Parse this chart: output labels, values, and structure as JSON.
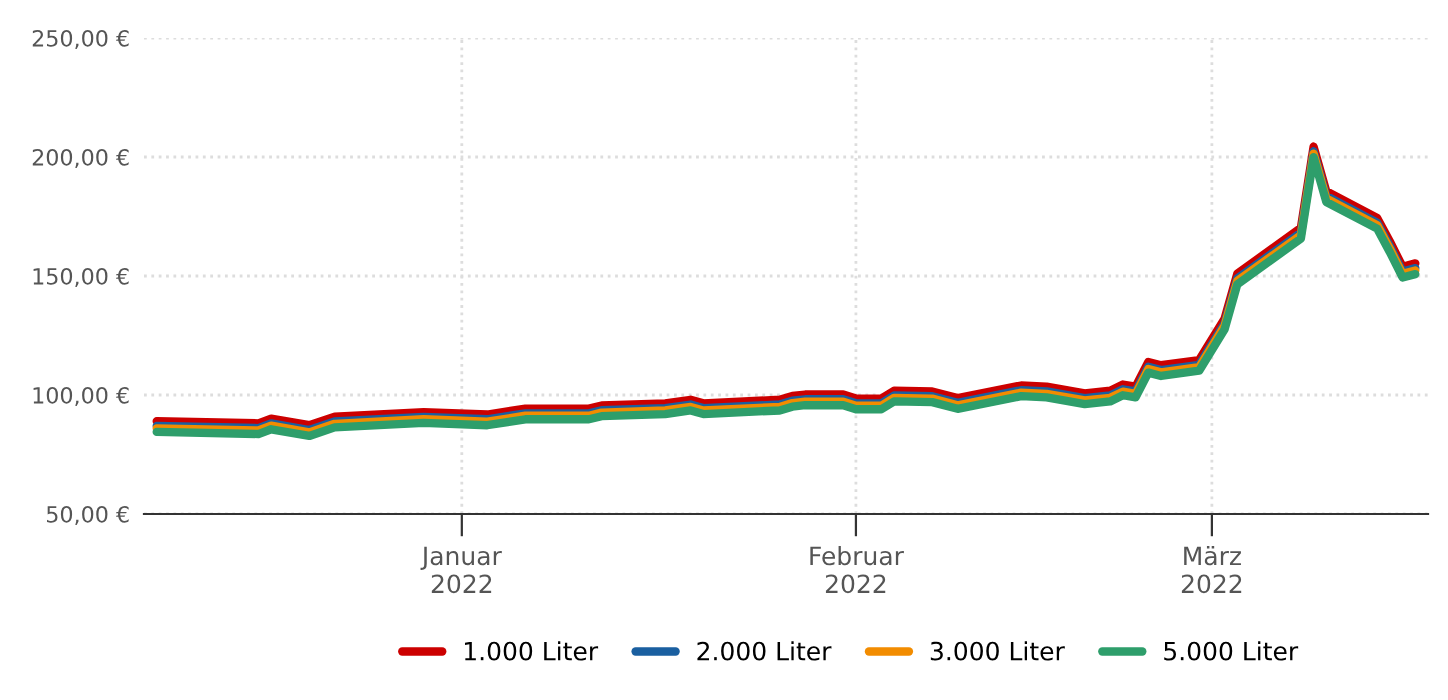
{
  "chart_data": {
    "type": "line",
    "x": [
      "2021-12-08",
      "2021-12-16",
      "2021-12-17",
      "2021-12-20",
      "2021-12-22",
      "2021-12-29",
      "2022-01-03",
      "2022-01-06",
      "2022-01-11",
      "2022-01-12",
      "2022-01-17",
      "2022-01-19",
      "2022-01-20",
      "2022-01-26",
      "2022-01-27",
      "2022-01-28",
      "2022-01-31",
      "2022-02-01",
      "2022-02-03",
      "2022-02-04",
      "2022-02-07",
      "2022-02-09",
      "2022-02-14",
      "2022-02-16",
      "2022-02-19",
      "2022-02-21",
      "2022-02-22",
      "2022-02-23",
      "2022-02-24",
      "2022-02-25",
      "2022-02-28",
      "2022-03-02",
      "2022-03-03",
      "2022-03-08",
      "2022-03-09",
      "2022-03-10",
      "2022-03-14",
      "2022-03-15",
      "2022-03-16",
      "2022-03-17"
    ],
    "series": [
      {
        "name": "1.000 Liter",
        "color": "#cc0000",
        "values": [
          89.0,
          88.1,
          90.1,
          87.3,
          90.9,
          92.8,
          91.8,
          94.3,
          94.3,
          95.6,
          96.5,
          98.0,
          96.5,
          98.0,
          99.6,
          100.2,
          100.2,
          98.5,
          98.5,
          101.8,
          101.5,
          98.7,
          104.0,
          103.5,
          100.7,
          101.8,
          104.4,
          103.5,
          113.9,
          112.5,
          114.7,
          132.1,
          151.0,
          170.2,
          204.4,
          185.6,
          174.4,
          164.5,
          153.9,
          155.3
        ]
      },
      {
        "name": "2.000 Liter",
        "color": "#1a5fa0",
        "values": [
          87.0,
          86.1,
          88.1,
          85.3,
          88.9,
          90.8,
          89.8,
          92.3,
          92.3,
          93.6,
          94.5,
          96.0,
          94.5,
          96.0,
          97.6,
          98.2,
          98.2,
          96.5,
          96.5,
          99.8,
          99.5,
          96.7,
          102.0,
          101.5,
          98.7,
          99.8,
          102.4,
          101.5,
          111.9,
          110.5,
          112.7,
          130.1,
          149.0,
          168.2,
          202.4,
          183.6,
          172.4,
          162.5,
          151.9,
          153.3
        ]
      },
      {
        "name": "3.000 Liter",
        "color": "#f28c00",
        "values": [
          86.0,
          85.1,
          87.1,
          84.3,
          87.9,
          89.8,
          88.8,
          91.3,
          91.3,
          92.6,
          93.5,
          95.0,
          93.5,
          95.0,
          96.6,
          97.2,
          97.2,
          95.5,
          95.5,
          98.8,
          98.5,
          95.7,
          101.0,
          100.5,
          97.7,
          98.8,
          101.4,
          100.5,
          110.9,
          109.5,
          111.7,
          129.1,
          148.0,
          167.2,
          201.4,
          182.6,
          171.4,
          161.5,
          150.9,
          152.3
        ]
      },
      {
        "name": "5.000 Liter",
        "color": "#2e9e6b",
        "values": [
          84.5,
          83.6,
          85.6,
          82.8,
          86.4,
          88.3,
          87.3,
          89.8,
          89.8,
          91.1,
          92.0,
          93.5,
          92.0,
          93.5,
          95.1,
          95.7,
          95.7,
          94.0,
          94.0,
          97.3,
          97.0,
          94.2,
          99.5,
          99.0,
          96.2,
          97.3,
          99.9,
          99.0,
          109.4,
          108.0,
          110.2,
          127.6,
          146.5,
          165.7,
          199.9,
          181.1,
          169.9,
          160.0,
          149.4,
          150.8
        ]
      }
    ],
    "xlim": [
      "2021-12-07",
      "2022-03-18"
    ],
    "xticks": [
      {
        "value": "2022-01-01",
        "label": "Januar\n2022"
      },
      {
        "value": "2022-02-01",
        "label": "Februar\n2022"
      },
      {
        "value": "2022-03-01",
        "label": "März\n2022"
      }
    ],
    "ylim": [
      50,
      250
    ],
    "yticks": [
      {
        "value": 50,
        "label": "50,00 €"
      },
      {
        "value": 100,
        "label": "100,00 €"
      },
      {
        "value": 150,
        "label": "150,00 €"
      },
      {
        "value": 200,
        "label": "200,00 €"
      },
      {
        "value": 250,
        "label": "250,00 €"
      }
    ],
    "grid": true,
    "legend": "bottom",
    "marker": "none",
    "line_style": "solid"
  }
}
